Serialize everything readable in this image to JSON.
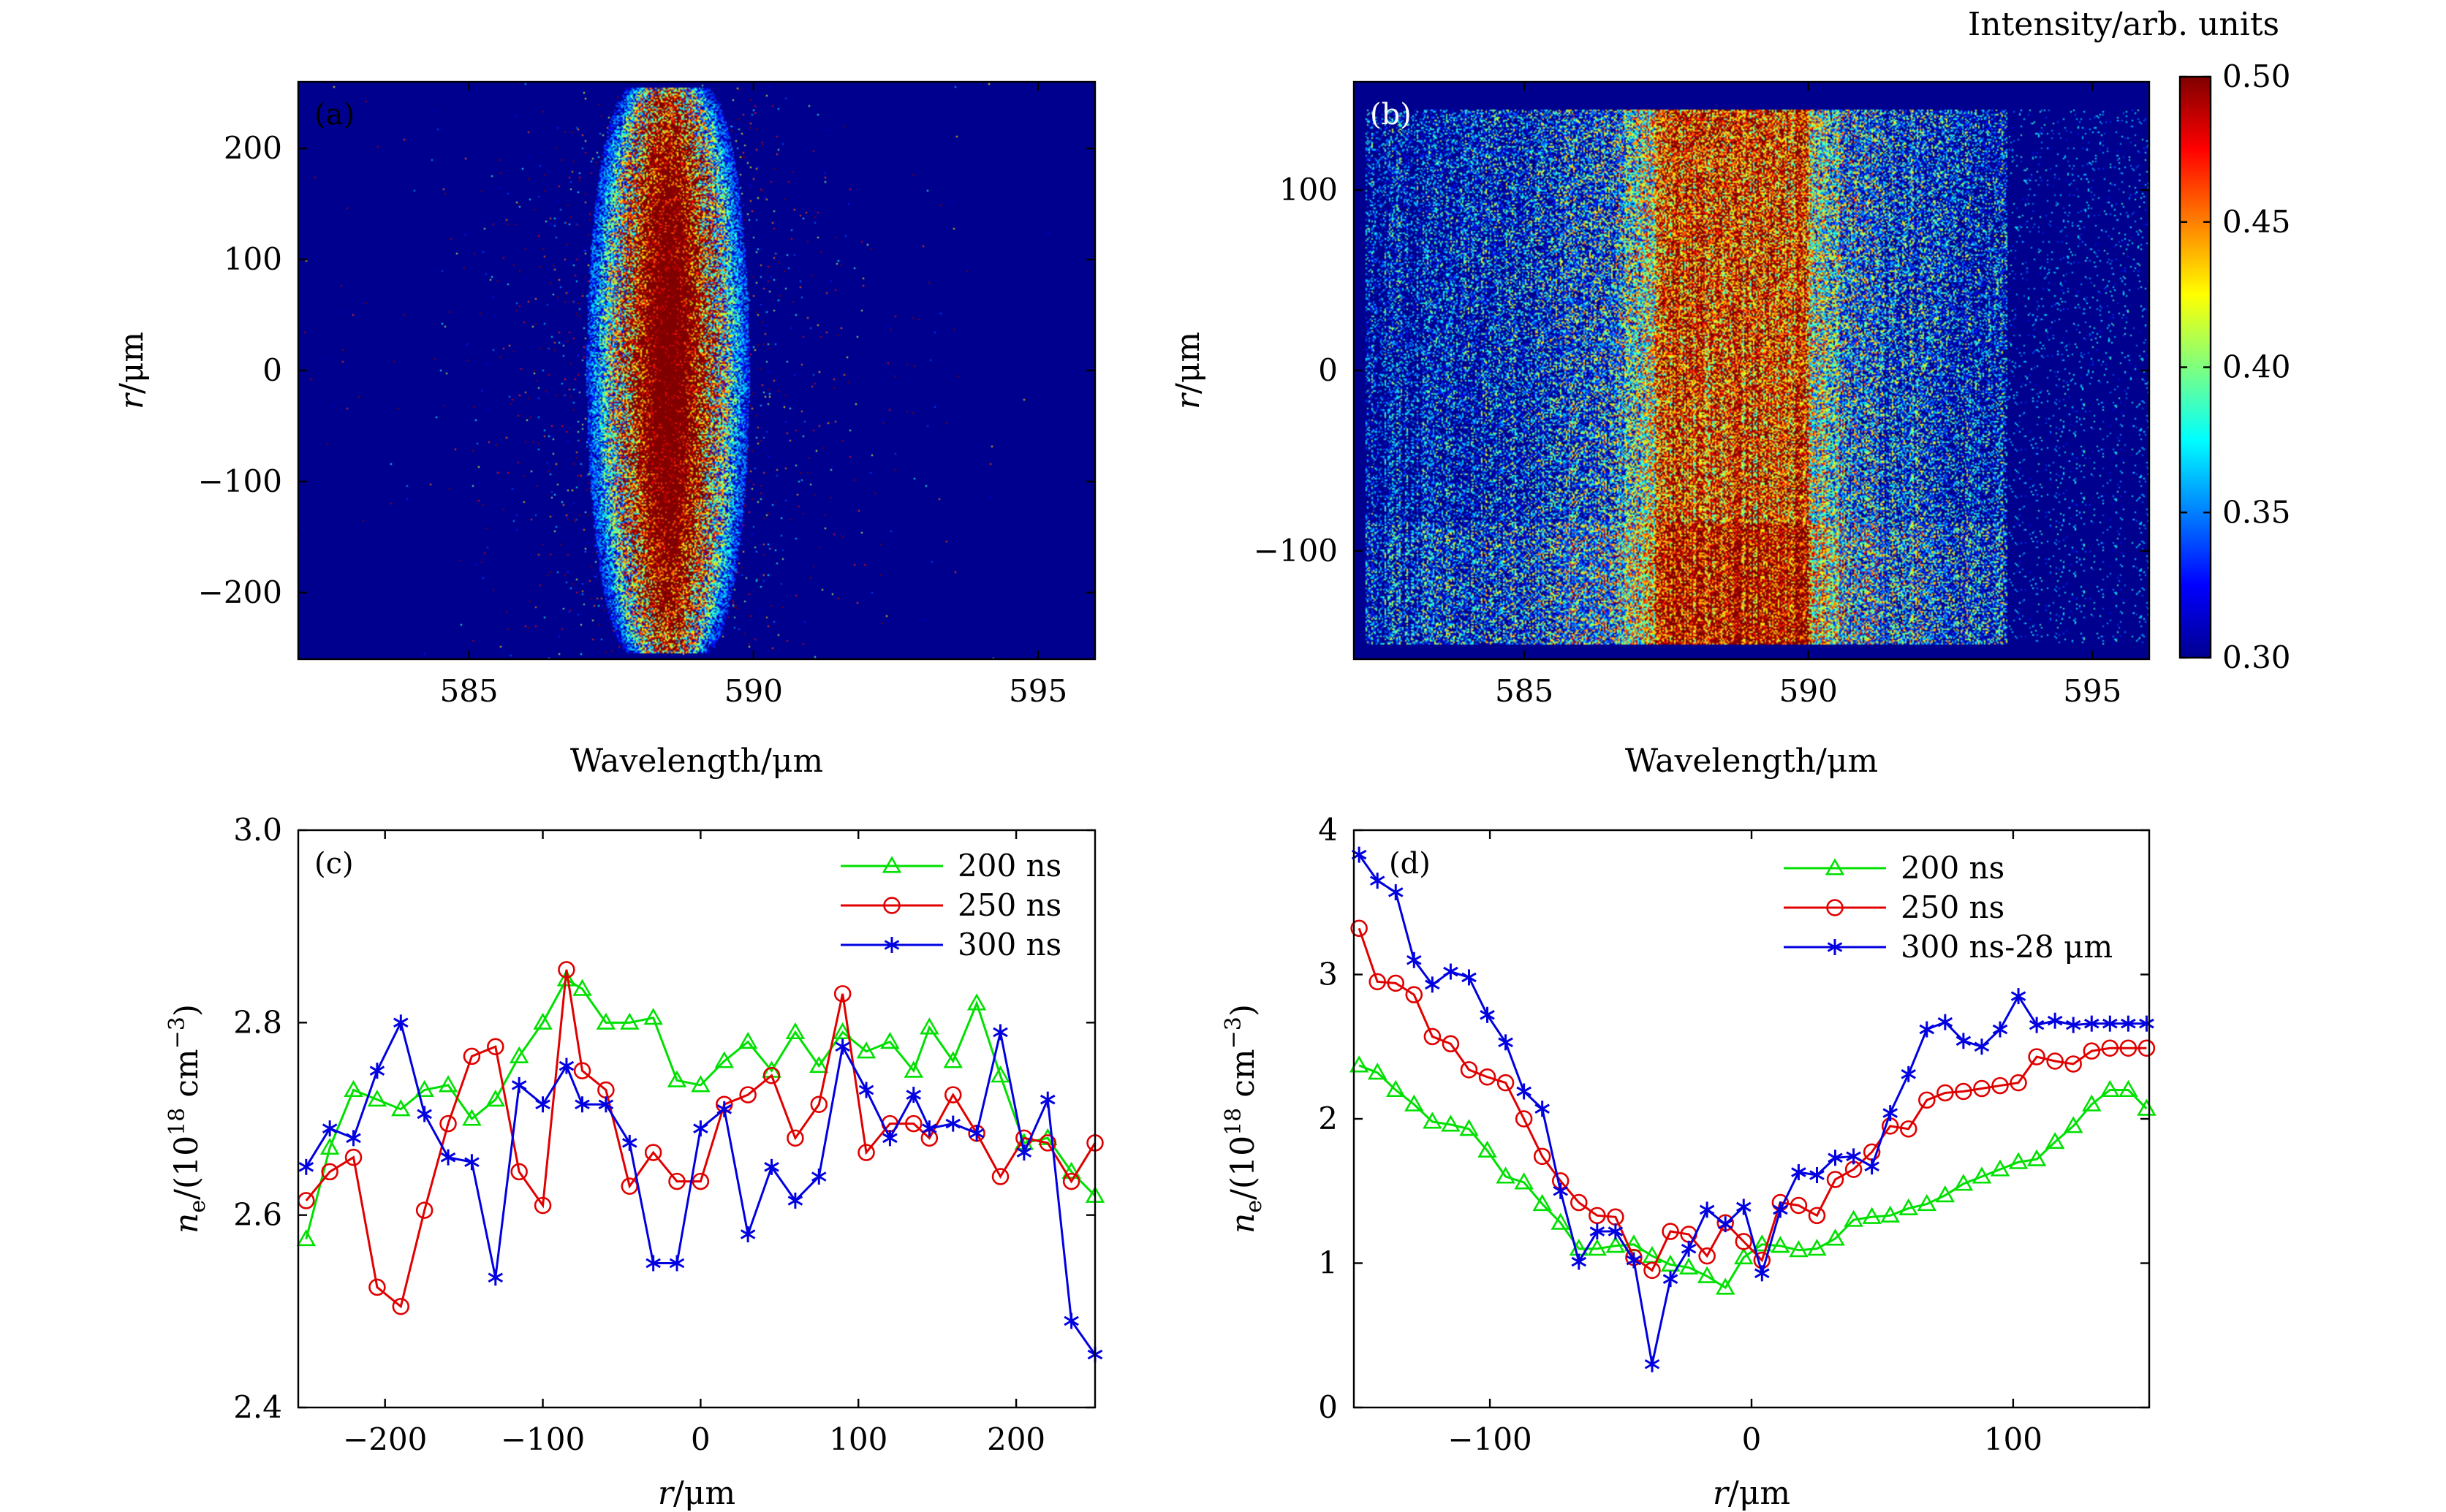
{
  "colorbar": {
    "title": "Intensity/arb. units",
    "min": 0.3,
    "max": 0.5,
    "ticks": [
      0.3,
      0.35,
      0.4,
      0.45,
      0.5
    ],
    "tick_labels": [
      "0.30",
      "0.35",
      "0.40",
      "0.45",
      "0.50"
    ]
  },
  "chart_data": [
    {
      "id": "a",
      "type": "heatmap",
      "panel_label": "(a)",
      "xlabel": "Wavelength/μm",
      "ylabel": "r/μm",
      "xlim": [
        582,
        596
      ],
      "ylim": [
        -260,
        260
      ],
      "xticks": [
        585,
        590,
        595
      ],
      "xtick_labels": [
        "585",
        "590",
        "595"
      ],
      "yticks": [
        -200,
        -100,
        0,
        100,
        200
      ],
      "ytick_labels": [
        "−200",
        "−100",
        "0",
        "100",
        "200"
      ],
      "background_color": "#00008f",
      "emission": {
        "description_center_wavelength": 588.5,
        "r_extent": [
          -255,
          255
        ],
        "core_halfwidth_wavelength": 0.55,
        "max_halfwidth_wavelength": 1.1,
        "dense_r_range": [
          -150,
          150
        ]
      }
    },
    {
      "id": "b",
      "type": "heatmap",
      "panel_label": "(b)",
      "xlabel": "Wavelength/μm",
      "ylabel": "r/μm",
      "xlim": [
        582,
        596
      ],
      "ylim": [
        -160,
        160
      ],
      "xticks": [
        585,
        590,
        595
      ],
      "xtick_labels": [
        "585",
        "590",
        "595"
      ],
      "yticks": [
        -100,
        0,
        100
      ],
      "ytick_labels": [
        "−100",
        "0",
        "100"
      ],
      "background_color": "#00008f",
      "emission": {
        "r_extent": [
          -152,
          145
        ],
        "wavelength_extent": [
          582.2,
          593.5
        ],
        "core_wavelength_range": [
          587.3,
          590.0
        ],
        "dense_r_range": [
          -150,
          -85
        ]
      }
    },
    {
      "id": "c",
      "type": "line",
      "panel_label": "(c)",
      "xlabel": "r/μm",
      "ylabel": "n_e/(10^18 cm^-3)",
      "xlim": [
        -255,
        250
      ],
      "ylim": [
        2.4,
        3.0
      ],
      "xticks": [
        -200,
        -100,
        0,
        100,
        200
      ],
      "xtick_labels": [
        "−200",
        "−100",
        "0",
        "100",
        "200"
      ],
      "yticks": [
        2.4,
        2.6,
        2.8,
        3.0
      ],
      "ytick_labels": [
        "2.4",
        "2.6",
        "2.8",
        "3.0"
      ],
      "x": [
        -250,
        -235,
        -220,
        -205,
        -190,
        -175,
        -160,
        -145,
        -130,
        -115,
        -100,
        -85,
        -75,
        -60,
        -45,
        -30,
        -15,
        0,
        15,
        30,
        45,
        60,
        75,
        90,
        105,
        120,
        135,
        145,
        160,
        175,
        190,
        205,
        220,
        235,
        250
      ],
      "series": [
        {
          "name": "200 ns",
          "color": "#00e000",
          "marker": "triangle",
          "values": [
            2.575,
            2.67,
            2.73,
            2.72,
            2.71,
            2.73,
            2.735,
            2.7,
            2.72,
            2.765,
            2.8,
            2.845,
            2.835,
            2.8,
            2.8,
            2.805,
            2.74,
            2.735,
            2.76,
            2.78,
            2.75,
            2.79,
            2.755,
            2.79,
            2.77,
            2.78,
            2.75,
            2.795,
            2.76,
            2.82,
            2.745,
            2.675,
            2.68,
            2.645,
            2.62
          ]
        },
        {
          "name": "250 ns",
          "color": "#e00000",
          "marker": "circle",
          "values": [
            2.615,
            2.645,
            2.66,
            2.525,
            2.505,
            2.605,
            2.695,
            2.765,
            2.775,
            2.645,
            2.61,
            2.855,
            2.75,
            2.73,
            2.63,
            2.665,
            2.635,
            2.635,
            2.715,
            2.725,
            2.745,
            2.68,
            2.715,
            2.83,
            2.665,
            2.695,
            2.695,
            2.68,
            2.725,
            2.685,
            2.64,
            2.68,
            2.675,
            2.635,
            2.675
          ]
        },
        {
          "name": "300 ns",
          "color": "#0000e0",
          "marker": "star",
          "values": [
            2.65,
            2.69,
            2.68,
            2.75,
            2.8,
            2.705,
            2.66,
            2.655,
            2.535,
            2.735,
            2.715,
            2.755,
            2.715,
            2.715,
            2.675,
            2.55,
            2.55,
            2.69,
            2.71,
            2.58,
            2.65,
            2.615,
            2.64,
            2.775,
            2.73,
            2.68,
            2.725,
            2.69,
            2.695,
            2.685,
            2.79,
            2.665,
            2.72,
            2.49,
            2.455
          ]
        }
      ],
      "legend": "top-right"
    },
    {
      "id": "d",
      "type": "line",
      "panel_label": "(d)",
      "xlabel": "r/μm",
      "ylabel": "n_e/(10^18 cm^-3)",
      "xlim": [
        -152,
        152
      ],
      "ylim": [
        0,
        4
      ],
      "xticks": [
        -100,
        0,
        100
      ],
      "xtick_labels": [
        "−100",
        "0",
        "100"
      ],
      "yticks": [
        0,
        1,
        2,
        3,
        4
      ],
      "ytick_labels": [
        "0",
        "1",
        "2",
        "3",
        "4"
      ],
      "x": [
        -150,
        -143,
        -136,
        -129,
        -122,
        -115,
        -108,
        -101,
        -94,
        -87,
        -80,
        -73,
        -66,
        -59,
        -52,
        -45,
        -38,
        -31,
        -24,
        -17,
        -10,
        -3,
        4,
        11,
        18,
        25,
        32,
        39,
        46,
        53,
        60,
        67,
        74,
        81,
        88,
        95,
        102,
        109,
        116,
        123,
        130,
        137,
        144,
        151
      ],
      "series": [
        {
          "name": "200 ns",
          "color": "#00e000",
          "marker": "triangle",
          "values": [
            2.37,
            2.32,
            2.2,
            2.1,
            1.98,
            1.96,
            1.93,
            1.78,
            1.6,
            1.56,
            1.41,
            1.28,
            1.1,
            1.1,
            1.12,
            1.13,
            1.05,
            0.99,
            0.97,
            0.91,
            0.83,
            1.04,
            1.13,
            1.12,
            1.09,
            1.1,
            1.17,
            1.3,
            1.32,
            1.33,
            1.38,
            1.41,
            1.47,
            1.55,
            1.6,
            1.65,
            1.7,
            1.72,
            1.84,
            1.95,
            2.1,
            2.2,
            2.2,
            2.07
          ]
        },
        {
          "name": "250 ns",
          "color": "#e00000",
          "marker": "circle",
          "values": [
            3.32,
            2.95,
            2.94,
            2.86,
            2.57,
            2.52,
            2.34,
            2.29,
            2.25,
            2.0,
            1.74,
            1.57,
            1.42,
            1.33,
            1.32,
            1.04,
            0.95,
            1.22,
            1.2,
            1.05,
            1.28,
            1.15,
            1.02,
            1.42,
            1.4,
            1.33,
            1.58,
            1.65,
            1.77,
            1.95,
            1.93,
            2.13,
            2.18,
            2.19,
            2.21,
            2.23,
            2.25,
            2.43,
            2.4,
            2.38,
            2.47,
            2.49,
            2.49,
            2.49
          ]
        },
        {
          "name": "300 ns-28 μm",
          "color": "#0000e0",
          "marker": "star",
          "values": [
            3.83,
            3.65,
            3.57,
            3.1,
            2.93,
            3.02,
            2.98,
            2.72,
            2.53,
            2.19,
            2.07,
            1.5,
            1.01,
            1.22,
            1.22,
            1.02,
            0.3,
            0.89,
            1.1,
            1.37,
            1.27,
            1.39,
            0.93,
            1.37,
            1.63,
            1.61,
            1.73,
            1.74,
            1.67,
            2.04,
            2.31,
            2.62,
            2.67,
            2.54,
            2.5,
            2.62,
            2.85,
            2.65,
            2.68,
            2.65,
            2.66,
            2.66,
            2.66,
            2.66
          ]
        }
      ],
      "legend": "top-right"
    }
  ]
}
